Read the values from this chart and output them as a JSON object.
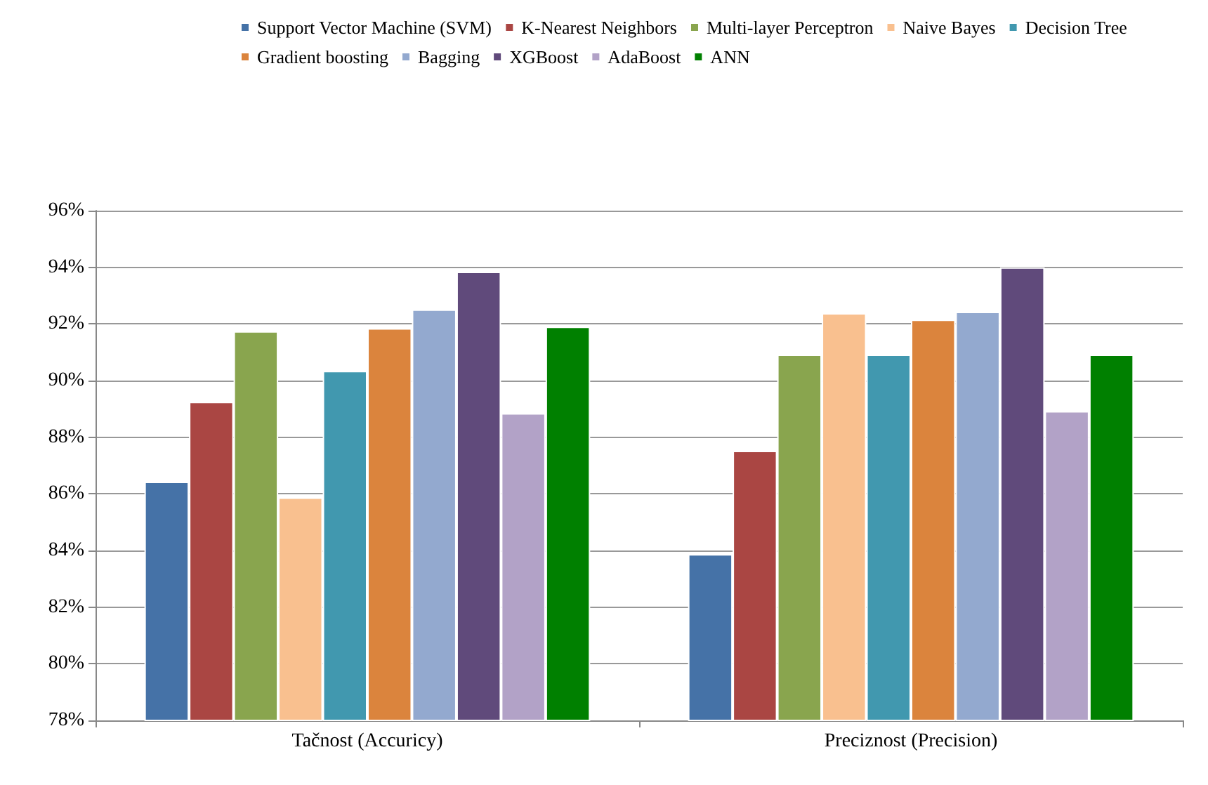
{
  "chart_data": {
    "type": "bar",
    "categories": [
      "Tačnost (Accuricy)",
      "Preciznost (Precision)"
    ],
    "series": [
      {
        "name": "Support Vector Machine (SVM)",
        "color": "#4572a7",
        "values": [
          86.43,
          83.87
        ]
      },
      {
        "name": "K-Nearest Neighbors",
        "color": "#aa4643",
        "values": [
          89.25,
          87.52
        ]
      },
      {
        "name": "Multi-layer Perceptron",
        "color": "#89a54e",
        "values": [
          91.74,
          90.92
        ]
      },
      {
        "name": "Naive Bayes",
        "color": "#f9c08f",
        "values": [
          85.87,
          92.38
        ]
      },
      {
        "name": "Decision Tree",
        "color": "#4198af",
        "values": [
          90.34,
          90.92
        ]
      },
      {
        "name": "Gradient boosting",
        "color": "#db843d",
        "values": [
          91.85,
          92.15
        ]
      },
      {
        "name": "Bagging",
        "color": "#93a9cf",
        "values": [
          92.51,
          92.43
        ]
      },
      {
        "name": "XGBoost",
        "color": "#604a7b",
        "values": [
          93.84,
          94.0
        ]
      },
      {
        "name": "AdaBoost",
        "color": "#b2a2c7",
        "values": [
          88.85,
          88.92
        ]
      },
      {
        "name": "ANN",
        "color": "#008000",
        "values": [
          91.9,
          90.92
        ]
      }
    ],
    "ylim": [
      78,
      96
    ],
    "yticks": [
      {
        "value": 78,
        "label": "78%"
      },
      {
        "value": 80,
        "label": "80%"
      },
      {
        "value": 82,
        "label": "82%"
      },
      {
        "value": 84,
        "label": "84%"
      },
      {
        "value": 86,
        "label": "86%"
      },
      {
        "value": 88,
        "label": "88%"
      },
      {
        "value": 90,
        "label": "90%"
      },
      {
        "value": 92,
        "label": "92%"
      },
      {
        "value": 94,
        "label": "94%"
      },
      {
        "value": 96,
        "label": "96%"
      }
    ],
    "grid": "y",
    "legend": "top"
  }
}
